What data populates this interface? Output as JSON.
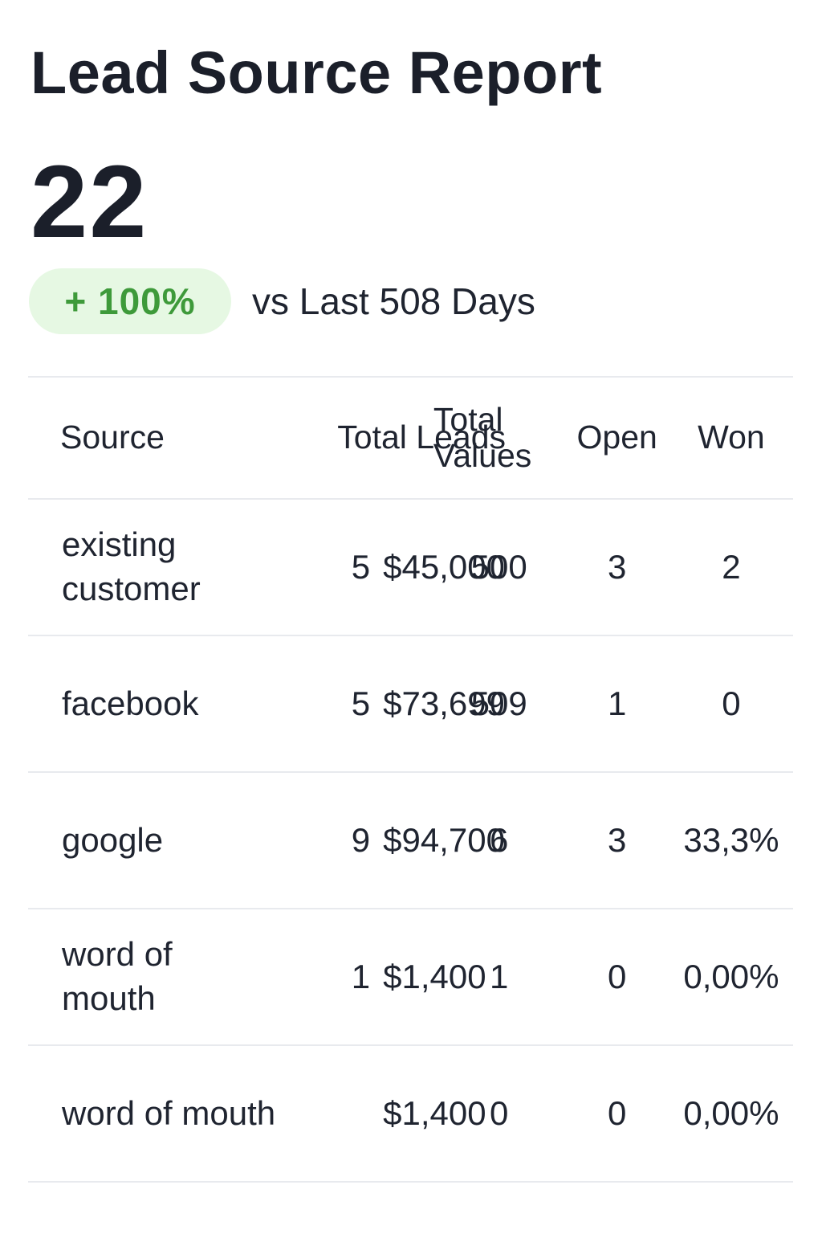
{
  "report": {
    "title": "Lead Source Report",
    "total": "22",
    "change_badge": "+ 100%",
    "change_period": "vs Last 508 Days"
  },
  "table": {
    "headers": {
      "source": "Source",
      "total_leads": "Total Leads",
      "total_values": "Total Values",
      "open": "Open",
      "won": "Won"
    },
    "rows": [
      {
        "source": "existing customer",
        "leads": "5",
        "value": "$45,000",
        "total": "500",
        "open": "3",
        "won": "2"
      },
      {
        "source": "facebook",
        "leads": "5",
        "value": "$73,699",
        "total": "509",
        "open": "1",
        "won": "0"
      },
      {
        "source": "google",
        "leads": "9",
        "value": "$94,700",
        "total": "6",
        "open": "3",
        "won": "33,3%"
      },
      {
        "source": "word of mouth",
        "leads": "1",
        "value": "$1,400",
        "total": "1",
        "open": "0",
        "won": "0,00%"
      },
      {
        "source": "word of mouth",
        "leads": "",
        "value": "$1,400",
        "total": "0",
        "open": "0",
        "won": "0,00%"
      }
    ]
  },
  "colors": {
    "badge_bg": "#e6f8e3",
    "badge_text": "#3e9a3a",
    "divider": "#e8eaee"
  }
}
